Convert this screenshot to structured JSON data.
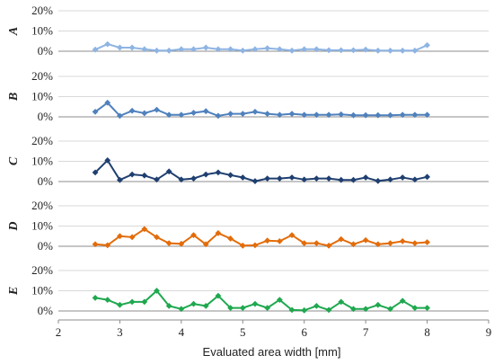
{
  "chart_data": {
    "type": "line",
    "xlabel": "Evaluated area width [mm]",
    "xlim": [
      2,
      9
    ],
    "x_ticks": [
      "2",
      "3",
      "4",
      "5",
      "6",
      "7",
      "8",
      "9"
    ],
    "ylim": [
      0,
      20
    ],
    "y_ticks": [
      "0%",
      "10%",
      "20%"
    ],
    "x": [
      2.6,
      2.8,
      3.0,
      3.2,
      3.4,
      3.6,
      3.8,
      4.0,
      4.2,
      4.4,
      4.6,
      4.8,
      5.0,
      5.2,
      5.4,
      5.6,
      5.8,
      6.0,
      6.2,
      6.4,
      6.6,
      6.8,
      7.0,
      7.2,
      7.4,
      7.6,
      7.8,
      8.0
    ],
    "panels": [
      {
        "label": "A",
        "color": "#8eb4e3",
        "values": [
          0.8,
          3.5,
          1.8,
          1.8,
          1.0,
          0.3,
          0.3,
          1.0,
          1.0,
          1.8,
          1.0,
          1.0,
          0.3,
          1.0,
          1.5,
          1.0,
          0.3,
          1.0,
          1.0,
          0.5,
          0.5,
          0.5,
          0.8,
          0.3,
          0.3,
          0.3,
          0.3,
          3.0
        ]
      },
      {
        "label": "B",
        "color": "#4f81bd",
        "values": [
          2.5,
          7.0,
          0.5,
          3.0,
          1.8,
          3.5,
          1.0,
          1.0,
          2.0,
          2.8,
          0.5,
          1.5,
          1.5,
          2.5,
          1.5,
          1.0,
          1.5,
          1.0,
          1.0,
          1.0,
          1.2,
          0.8,
          0.8,
          0.8,
          0.8,
          1.0,
          1.0,
          1.0
        ]
      },
      {
        "label": "C",
        "color": "#1f3f70",
        "values": [
          4.5,
          10.5,
          0.8,
          3.5,
          3.0,
          1.0,
          5.0,
          1.0,
          1.5,
          3.5,
          4.5,
          3.2,
          2.0,
          0.2,
          1.5,
          1.5,
          2.0,
          1.0,
          1.5,
          1.5,
          0.8,
          0.8,
          2.0,
          0.3,
          1.0,
          2.0,
          1.0,
          2.3
        ]
      },
      {
        "label": "D",
        "color": "#e36c0a",
        "values": [
          1.0,
          0.5,
          5.0,
          4.5,
          8.5,
          4.5,
          1.5,
          1.2,
          5.5,
          1.0,
          6.5,
          3.8,
          0.3,
          0.5,
          2.8,
          2.5,
          5.5,
          1.5,
          1.5,
          0.3,
          3.5,
          1.0,
          3.0,
          1.0,
          1.5,
          2.5,
          1.5,
          2.0
        ]
      },
      {
        "label": "E",
        "color": "#1fa84f",
        "values": [
          6.5,
          5.5,
          3.0,
          4.5,
          4.5,
          10.0,
          2.5,
          1.0,
          3.5,
          2.5,
          7.5,
          1.5,
          1.5,
          3.5,
          1.5,
          5.5,
          0.5,
          0.3,
          2.5,
          0.5,
          4.5,
          1.0,
          1.0,
          3.0,
          1.0,
          5.0,
          1.5,
          1.5
        ]
      }
    ]
  }
}
